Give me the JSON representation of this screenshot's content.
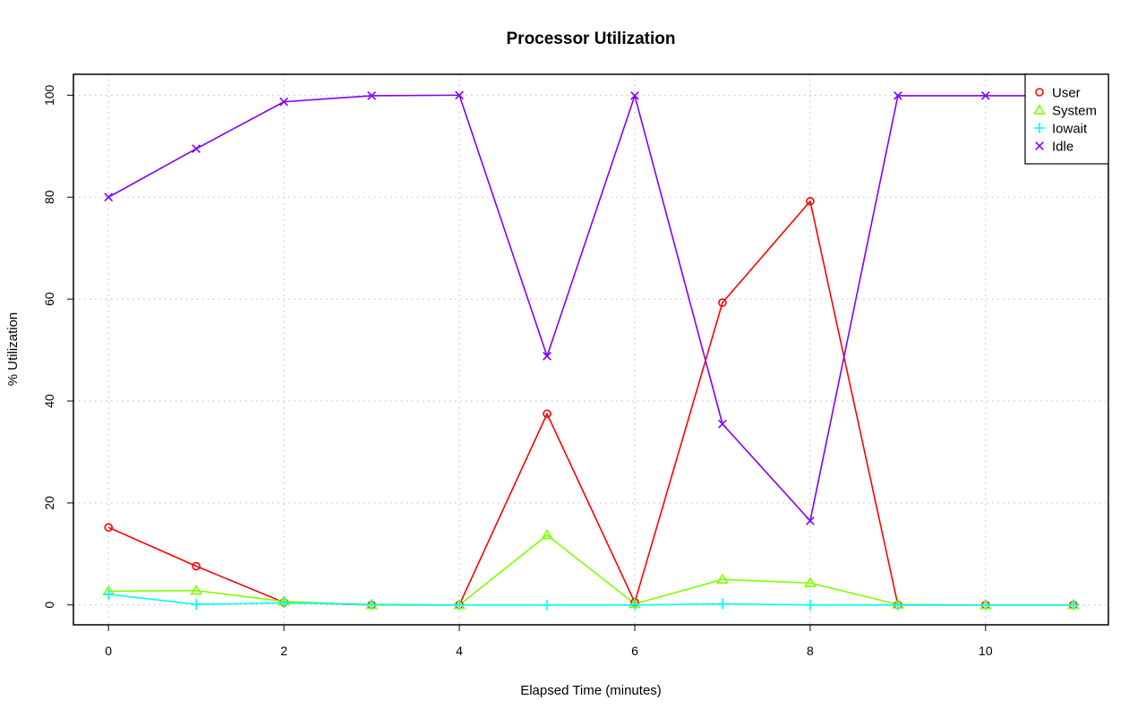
{
  "chart_data": {
    "type": "line",
    "title": "Processor Utilization",
    "xlabel": "Elapsed Time (minutes)",
    "ylabel": "% Utilization",
    "x": [
      0,
      1,
      2,
      3,
      4,
      5,
      6,
      7,
      8,
      9,
      10,
      11
    ],
    "xlim": [
      -0.4,
      11.4
    ],
    "ylim": [
      -3.9,
      104.1
    ],
    "xticks": [
      "0",
      "2",
      "4",
      "6",
      "8",
      "10"
    ],
    "yticks": [
      "0",
      "20",
      "40",
      "60",
      "80",
      "100"
    ],
    "grid": true,
    "legend_position": "top-right",
    "series": [
      {
        "name": "User",
        "color": "#ff0000",
        "marker": "circle",
        "values": [
          15.2,
          7.6,
          0.5,
          0,
          0,
          37.5,
          0.5,
          59.3,
          79.2,
          0,
          0,
          0
        ]
      },
      {
        "name": "System",
        "color": "#80ff00",
        "marker": "triangle",
        "values": [
          2.7,
          2.8,
          0.7,
          0,
          0,
          13.7,
          0.2,
          5.0,
          4.3,
          0.1,
          0,
          0
        ]
      },
      {
        "name": "Iowait",
        "color": "#00ffff",
        "marker": "plus",
        "values": [
          2.1,
          0.1,
          0.4,
          0.1,
          0,
          0,
          0,
          0.2,
          0,
          0,
          0,
          0
        ]
      },
      {
        "name": "Idle",
        "color": "#8000ff",
        "marker": "cross",
        "values": [
          80.0,
          89.5,
          98.7,
          99.9,
          100,
          48.8,
          99.9,
          35.5,
          16.5,
          99.9,
          99.9,
          99.9
        ]
      }
    ]
  }
}
